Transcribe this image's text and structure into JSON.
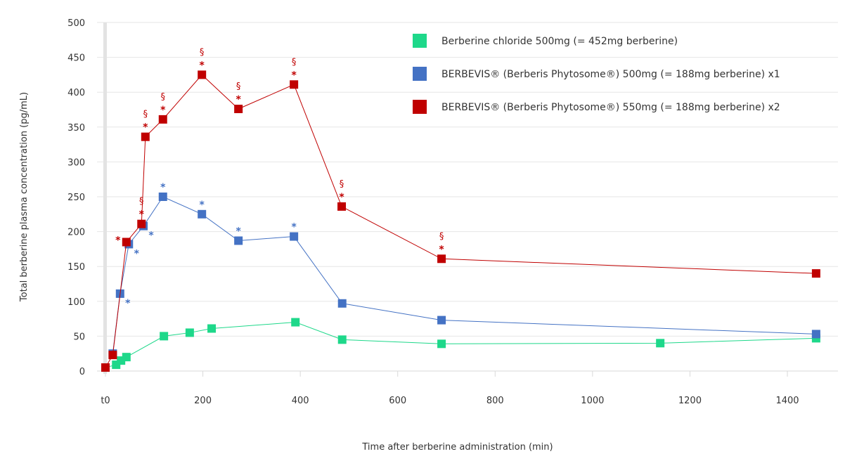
{
  "chart_data": {
    "type": "line",
    "title": "",
    "xlabel": "Time after berberine administration (min)",
    "ylabel": "Total berberine plasma concentration (pg/mL)",
    "xlim": [
      0,
      1500
    ],
    "ylim": [
      0,
      500
    ],
    "xticks": [
      0,
      200,
      400,
      600,
      800,
      1000,
      1200,
      1400
    ],
    "xtick_labels": [
      "t0",
      "200",
      "400",
      "600",
      "800",
      "1000",
      "1200",
      "1400"
    ],
    "yticks": [
      0,
      50,
      100,
      150,
      200,
      250,
      300,
      350,
      400,
      450,
      500
    ],
    "ytick_labels": [
      "0",
      "50",
      "100",
      "150",
      "200",
      "250",
      "300",
      "350",
      "400",
      "450",
      "500"
    ],
    "grid": "horizontal",
    "legend_position": "top-right",
    "series": [
      {
        "name": "Berberine chloride 500mg (= 452mg berberine)",
        "color": "#1ed88a",
        "x": [
          0,
          22,
          32,
          43,
          120,
          173,
          218,
          390,
          486,
          690,
          1139,
          1459
        ],
        "y": [
          5,
          9,
          15,
          20,
          50,
          55,
          61,
          70,
          45,
          39,
          40,
          47
        ],
        "annotations": [
          "",
          "",
          "",
          "",
          "",
          "",
          "",
          "",
          "",
          "",
          "",
          ""
        ]
      },
      {
        "name": "BERBEVIS® (Berberis Phytosome®) 500mg (= 188mg berberine) x1",
        "color": "#4472c4",
        "x": [
          15,
          30,
          48,
          78,
          118,
          198,
          273,
          387,
          486,
          690,
          1459
        ],
        "y": [
          25,
          111,
          182,
          208,
          250,
          225,
          187,
          193,
          97,
          73,
          53
        ],
        "annotations": [
          "",
          "*",
          "*",
          "*",
          "*",
          "*",
          "*",
          "*",
          "",
          "",
          ""
        ]
      },
      {
        "name": "BERBEVIS® (Berberis Phytosome®) 550mg (= 188mg berberine) x2",
        "color": "#c00000",
        "x": [
          0,
          15,
          43,
          74,
          82,
          118,
          198,
          273,
          387,
          485,
          690,
          1459
        ],
        "y": [
          5,
          23,
          185,
          211,
          336,
          361,
          425,
          376,
          411,
          236,
          161,
          140
        ],
        "annotations": [
          "",
          "",
          "*",
          "§*",
          "§*",
          "§*",
          "§*",
          "§*",
          "§*",
          "§*",
          "§*",
          ""
        ]
      }
    ]
  }
}
